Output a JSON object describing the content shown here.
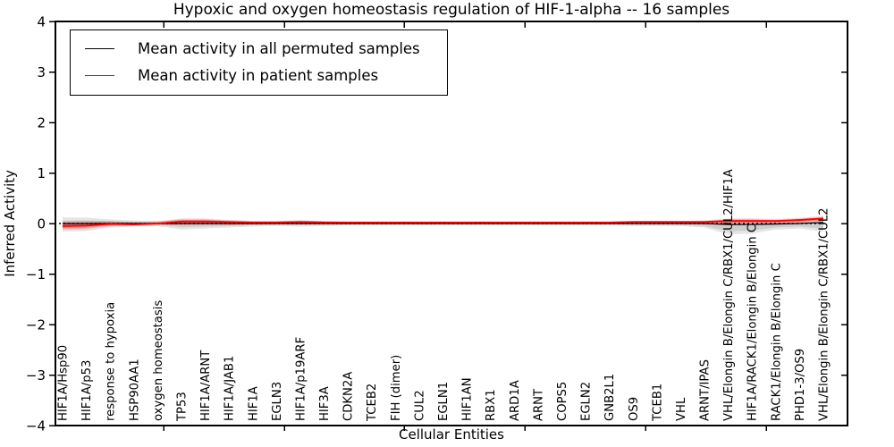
{
  "chart_data": {
    "type": "line",
    "title": "Hypoxic and oxygen homeostasis regulation of HIF-1-alpha -- 16 samples",
    "xlabel": "Cellular Entities",
    "ylabel": "Inferred Activity",
    "ylim": [
      -4,
      4
    ],
    "yticks": [
      -4,
      -3,
      -2,
      -1,
      0,
      1,
      2,
      3,
      4
    ],
    "grid": false,
    "legend_position": "upper left",
    "zero_line": {
      "style": "dotted",
      "color": "#000000",
      "y": 0
    },
    "categories": [
      "HIF1A/Hsp90",
      "HIF1A/p53",
      "response to hypoxia",
      "HSP90AA1",
      "oxygen homeostasis",
      "TP53",
      "HIF1A/ARNT",
      "HIF1A/JAB1",
      "HIF1A",
      "EGLN3",
      "HIF1A/p19ARF",
      "HIF3A",
      "CDKN2A",
      "TCEB2",
      "FIH (dimer)",
      "CUL2",
      "EGLN1",
      "HIF1AN",
      "RBX1",
      "ARD1A",
      "ARNT",
      "COPS5",
      "EGLN2",
      "GNB2L1",
      "OS9",
      "TCEB1",
      "VHL",
      "ARNT/IPAS",
      "VHL/Elongin B/Elongin C/RBX1/CUL2/HIF1A",
      "HIF1A/RACK1/Elongin B/Elongin C",
      "RACK1/Elongin B/Elongin C",
      "PHD1-3/OS9",
      "VHL/Elongin B/Elongin C/RBX1/CUL2"
    ],
    "series": [
      {
        "name": "Mean activity in all permuted samples",
        "color": "#000000",
        "values": [
          0,
          0,
          0,
          0,
          0,
          0,
          0,
          0,
          0,
          0,
          0,
          0,
          0,
          0,
          0,
          0,
          0,
          0,
          0,
          0,
          0,
          0,
          0,
          0,
          0,
          0,
          0,
          0,
          -0.02,
          -0.02,
          -0.01,
          0,
          0.02
        ]
      },
      {
        "name": "Mean activity in patient samples",
        "color": "#ff0000",
        "values": [
          -0.05,
          -0.04,
          -0.01,
          -0.02,
          0,
          0.04,
          0.04,
          0.03,
          0.02,
          0.02,
          0.03,
          0.02,
          0.02,
          0.02,
          0.02,
          0.02,
          0.02,
          0.02,
          0.02,
          0.02,
          0.02,
          0.02,
          0.02,
          0.02,
          0.03,
          0.03,
          0.03,
          0.03,
          0.05,
          0.05,
          0.05,
          0.07,
          0.1
        ]
      }
    ],
    "bands": {
      "permuted": {
        "color": "#999999",
        "hi": [
          0.12,
          0.12,
          0.08,
          0.06,
          0.05,
          0.08,
          0.08,
          0.06,
          0.05,
          0.05,
          0.06,
          0.05,
          0.04,
          0.04,
          0.04,
          0.04,
          0.04,
          0.04,
          0.04,
          0.04,
          0.04,
          0.04,
          0.04,
          0.04,
          0.05,
          0.05,
          0.05,
          0.05,
          0.08,
          0.08,
          0.06,
          0.08,
          0.1
        ],
        "lo": [
          -0.16,
          -0.15,
          -0.08,
          -0.06,
          -0.05,
          -0.12,
          -0.1,
          -0.08,
          -0.06,
          -0.05,
          -0.06,
          -0.05,
          -0.04,
          -0.04,
          -0.04,
          -0.04,
          -0.04,
          -0.04,
          -0.04,
          -0.04,
          -0.04,
          -0.04,
          -0.04,
          -0.04,
          -0.05,
          -0.05,
          -0.05,
          -0.08,
          -0.22,
          -0.2,
          -0.12,
          -0.1,
          -0.16
        ]
      },
      "patient": {
        "color": "#ff0000",
        "hi": [
          0.04,
          0.05,
          0.05,
          0.03,
          0.04,
          0.1,
          0.1,
          0.07,
          0.05,
          0.05,
          0.06,
          0.05,
          0.04,
          0.04,
          0.04,
          0.04,
          0.04,
          0.04,
          0.04,
          0.04,
          0.04,
          0.04,
          0.04,
          0.04,
          0.05,
          0.05,
          0.05,
          0.06,
          0.1,
          0.1,
          0.09,
          0.11,
          0.15
        ],
        "lo": [
          -0.12,
          -0.11,
          -0.05,
          -0.04,
          -0.03,
          -0.03,
          -0.02,
          -0.03,
          -0.02,
          -0.01,
          0,
          -0.01,
          -0.01,
          -0.01,
          -0.01,
          -0.01,
          -0.01,
          -0.01,
          -0.01,
          -0.01,
          -0.01,
          -0.01,
          -0.01,
          -0.01,
          0,
          0,
          0,
          0,
          0,
          0,
          0,
          0.02,
          0.04
        ]
      }
    }
  }
}
